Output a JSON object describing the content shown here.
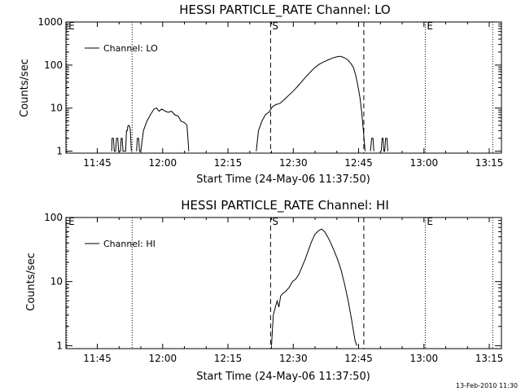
{
  "chart_data": [
    {
      "type": "line",
      "title": "HESSI PARTICLE_RATE Channel: LO",
      "ylabel": "Counts/sec",
      "xlabel": "Start Time (24-May-06 11:37:50)",
      "y_scale": "log",
      "ylim": [
        0.9,
        1000
      ],
      "y_ticks": [
        {
          "value": 1,
          "label": "1"
        },
        {
          "value": 10,
          "label": "10"
        },
        {
          "value": 100,
          "label": "100"
        },
        {
          "value": 1000,
          "label": "1000"
        }
      ],
      "x_ticks": [
        "11:45",
        "12:00",
        "12:15",
        "12:30",
        "12:45",
        "13:00",
        "13:15"
      ],
      "xlim_minutes": [
        37.8,
        137.8
      ],
      "legend": {
        "position": "top-left",
        "entries": [
          "Channel: LO"
        ]
      },
      "grid": false,
      "markers": [
        {
          "label": "E",
          "time": "11:38",
          "minutes": 38.0,
          "style": "dotted"
        },
        {
          "label": "",
          "time": "11:53",
          "minutes": 53.0,
          "style": "dotted"
        },
        {
          "label": "S",
          "time": "12:25",
          "minutes": 84.8,
          "style": "dashed"
        },
        {
          "label": "",
          "time": "12:46",
          "minutes": 106.2,
          "style": "dashed"
        },
        {
          "label": "E",
          "time": "13:00",
          "minutes": 120.3,
          "style": "dotted"
        },
        {
          "label": "",
          "time": "13:15",
          "minutes": 135.8,
          "style": "dotted"
        }
      ],
      "series": [
        {
          "points": [
            [
              48.3,
              1
            ],
            [
              48.4,
              2
            ],
            [
              48.7,
              2
            ],
            [
              48.9,
              1
            ],
            [
              49.2,
              1
            ],
            [
              49.4,
              2
            ],
            [
              49.7,
              2
            ],
            [
              49.9,
              1
            ],
            [
              50.3,
              1
            ],
            [
              50.5,
              2
            ],
            [
              50.7,
              2
            ],
            [
              50.9,
              1
            ],
            [
              51.5,
              1
            ],
            [
              51.7,
              3
            ],
            [
              51.9,
              3
            ],
            [
              52.0,
              3.8
            ],
            [
              52.2,
              4
            ],
            [
              52.4,
              3.8
            ],
            [
              52.6,
              3
            ],
            [
              52.8,
              1
            ],
            [
              54.0,
              1
            ],
            [
              54.2,
              2
            ],
            [
              54.5,
              2
            ],
            [
              54.7,
              1
            ],
            [
              55.0,
              1
            ],
            [
              55.6,
              3
            ],
            [
              56.4,
              5
            ],
            [
              57.2,
              7
            ],
            [
              58.0,
              9.5
            ],
            [
              58.6,
              10
            ],
            [
              59.2,
              8.5
            ],
            [
              59.8,
              9.5
            ],
            [
              60.6,
              8.5
            ],
            [
              61.3,
              8
            ],
            [
              62.0,
              8.5
            ],
            [
              62.8,
              7
            ],
            [
              63.6,
              6.5
            ],
            [
              64.2,
              5
            ],
            [
              65.0,
              4.6
            ],
            [
              65.6,
              4
            ],
            [
              66.0,
              1
            ],
            [
              81.5,
              1
            ],
            [
              82.0,
              3
            ],
            [
              82.8,
              5
            ],
            [
              83.6,
              7
            ],
            [
              84.4,
              8
            ],
            [
              85.3,
              11
            ],
            [
              86.0,
              12
            ],
            [
              87.0,
              13
            ],
            [
              88.0,
              16
            ],
            [
              89.0,
              20
            ],
            [
              90.0,
              25
            ],
            [
              91.0,
              32
            ],
            [
              92.0,
              42
            ],
            [
              93.0,
              55
            ],
            [
              94.0,
              70
            ],
            [
              95.0,
              88
            ],
            [
              96.0,
              105
            ],
            [
              97.0,
              118
            ],
            [
              98.0,
              132
            ],
            [
              99.0,
              145
            ],
            [
              100.0,
              155
            ],
            [
              100.8,
              160
            ],
            [
              101.6,
              150
            ],
            [
              102.4,
              135
            ],
            [
              103.2,
              110
            ],
            [
              103.8,
              88
            ],
            [
              104.3,
              60
            ],
            [
              104.8,
              35
            ],
            [
              105.3,
              18
            ],
            [
              105.7,
              8
            ],
            [
              106.1,
              3
            ],
            [
              106.5,
              1
            ],
            [
              107.7,
              1
            ],
            [
              108.0,
              2
            ],
            [
              108.3,
              2
            ],
            [
              108.5,
              1
            ],
            [
              110.2,
              1
            ],
            [
              110.4,
              2
            ],
            [
              110.6,
              2
            ],
            [
              110.8,
              1
            ],
            [
              111.0,
              1
            ],
            [
              111.2,
              2
            ],
            [
              111.5,
              2
            ],
            [
              111.7,
              1
            ]
          ]
        }
      ]
    },
    {
      "type": "line",
      "title": "HESSI PARTICLE_RATE Channel: HI",
      "ylabel": "Counts/sec",
      "xlabel": "Start Time (24-May-06 11:37:50)",
      "y_scale": "log",
      "ylim": [
        0.9,
        100
      ],
      "y_ticks": [
        {
          "value": 1,
          "label": "1"
        },
        {
          "value": 10,
          "label": "10"
        },
        {
          "value": 100,
          "label": "100"
        }
      ],
      "x_ticks": [
        "11:45",
        "12:00",
        "12:15",
        "12:30",
        "12:45",
        "13:00",
        "13:15"
      ],
      "xlim_minutes": [
        37.8,
        137.8
      ],
      "legend": {
        "position": "top-left",
        "entries": [
          "Channel: HI"
        ]
      },
      "grid": false,
      "markers": [
        {
          "label": "E",
          "time": "11:38",
          "minutes": 38.0,
          "style": "dotted"
        },
        {
          "label": "",
          "time": "11:53",
          "minutes": 53.0,
          "style": "dotted"
        },
        {
          "label": "S",
          "time": "12:25",
          "minutes": 84.8,
          "style": "dashed"
        },
        {
          "label": "",
          "time": "12:46",
          "minutes": 106.2,
          "style": "dashed"
        },
        {
          "label": "E",
          "time": "13:00",
          "minutes": 120.3,
          "style": "dotted"
        },
        {
          "label": "",
          "time": "13:15",
          "minutes": 135.8,
          "style": "dotted"
        }
      ],
      "series": [
        {
          "points": [
            [
              85.0,
              1
            ],
            [
              85.4,
              3
            ],
            [
              85.9,
              4
            ],
            [
              86.3,
              5
            ],
            [
              86.7,
              4
            ],
            [
              87.1,
              6
            ],
            [
              87.6,
              6.5
            ],
            [
              88.2,
              7
            ],
            [
              89.0,
              8
            ],
            [
              89.8,
              10
            ],
            [
              90.6,
              11
            ],
            [
              91.3,
              13
            ],
            [
              92.0,
              17
            ],
            [
              92.7,
              22
            ],
            [
              93.4,
              30
            ],
            [
              94.2,
              42
            ],
            [
              95.0,
              55
            ],
            [
              95.8,
              62
            ],
            [
              96.5,
              66
            ],
            [
              97.2,
              60
            ],
            [
              97.9,
              50
            ],
            [
              98.6,
              40
            ],
            [
              99.4,
              30
            ],
            [
              100.2,
              22
            ],
            [
              101.0,
              15
            ],
            [
              101.8,
              9
            ],
            [
              102.6,
              5
            ],
            [
              103.4,
              2.5
            ],
            [
              104.2,
              1.2
            ],
            [
              104.6,
              1
            ]
          ]
        }
      ]
    }
  ],
  "footer": {
    "timestamp": "13-Feb-2010 11:30"
  }
}
